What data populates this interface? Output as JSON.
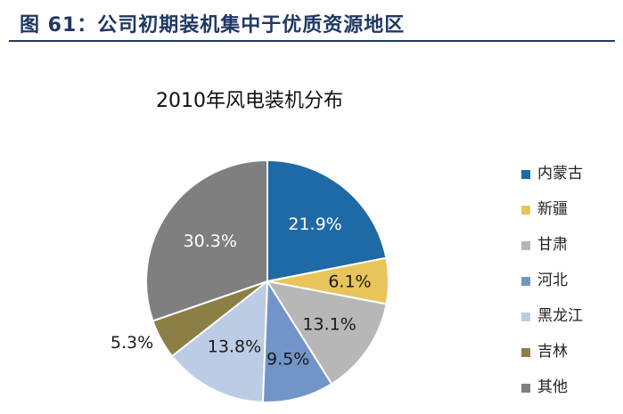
{
  "figure": {
    "title": "图 61：公司初期装机集中于优质资源地区"
  },
  "chart_data": {
    "type": "pie",
    "title": "2010年风电装机分布",
    "legend_position": "right",
    "unit": "%",
    "slices": [
      {
        "label": "内蒙古",
        "value": 21.9,
        "display": "21.9%",
        "color": "#1f6aa5"
      },
      {
        "label": "新疆",
        "value": 6.1,
        "display": "6.1%",
        "color": "#e8c55a"
      },
      {
        "label": "甘肃",
        "value": 13.1,
        "display": "13.1%",
        "color": "#b7b7b7"
      },
      {
        "label": "河北",
        "value": 9.5,
        "display": "9.5%",
        "color": "#7294c8"
      },
      {
        "label": "黑龙江",
        "value": 13.8,
        "display": "13.8%",
        "color": "#bccce4"
      },
      {
        "label": "吉林",
        "value": 5.3,
        "display": "5.3%",
        "color": "#8c7f46"
      },
      {
        "label": "其他",
        "value": 30.3,
        "display": "30.3%",
        "color": "#7f7f7f"
      }
    ]
  }
}
